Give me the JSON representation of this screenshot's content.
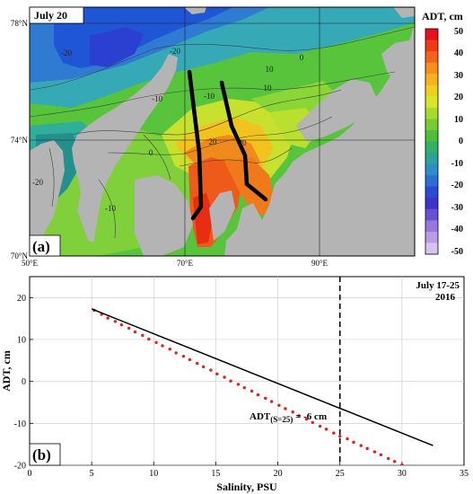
{
  "panel_a": {
    "label": "(a)",
    "date_label": "July 20",
    "colorbar_title": "ADT, cm",
    "colorbar_ticks": [
      "50",
      "40",
      "30",
      "20",
      "10",
      "0",
      "-10",
      "-20",
      "-30",
      "-40",
      "-50"
    ],
    "lat_labels": [
      "78°N",
      "74°N",
      "70°N"
    ],
    "lon_labels": [
      "50°E",
      "70°E",
      "90°E"
    ],
    "contour_labels": [
      "-20",
      "-20",
      "-10",
      "-20",
      "-10",
      "0",
      "0",
      "10",
      "-10",
      "10",
      "20",
      "20"
    ]
  },
  "chart_data": {
    "type": "scatter",
    "title": "",
    "panel_label": "(b)",
    "period_label": [
      "July 17-25",
      "2016"
    ],
    "xlabel": "Salinity, PSU",
    "ylabel": "ADT, cm",
    "xlim": [
      0,
      35
    ],
    "ylim": [
      -20,
      25
    ],
    "xticks": [
      0,
      5,
      10,
      15,
      20,
      25,
      30,
      35
    ],
    "yticks": [
      -20,
      -10,
      0,
      10,
      20
    ],
    "grid": true,
    "series": [
      {
        "x": [
          5.2,
          5.8,
          6.3,
          6.9,
          7.4,
          8.0,
          8.5,
          9.1,
          9.6,
          10.2,
          10.7,
          11.3,
          11.8,
          12.4,
          12.9,
          13.5,
          14.0,
          14.6,
          15.1,
          15.7,
          16.2,
          16.8,
          17.3,
          17.9,
          18.4,
          19.0,
          19.5,
          20.1,
          20.6,
          21.2,
          21.7,
          22.3,
          22.8,
          23.4,
          23.9,
          24.5,
          25.0,
          25.6,
          26.1,
          26.7,
          27.2,
          27.8,
          28.3,
          28.9,
          29.4,
          30.0,
          30.5,
          31.0,
          31.3,
          31.6,
          31.9,
          32.2
        ],
        "y": [
          17.0,
          16.0,
          15.1,
          14.3,
          13.5,
          12.7,
          11.8,
          11.0,
          10.1,
          9.3,
          8.5,
          7.7,
          6.8,
          6.0,
          5.2,
          4.3,
          3.5,
          2.7,
          1.8,
          1.0,
          0.1,
          -0.7,
          -1.5,
          -2.3,
          -3.2,
          -4.0,
          -4.8,
          -5.7,
          -6.5,
          -7.3,
          -8.2,
          -9.0,
          -9.8,
          -10.7,
          -11.4,
          -12.3,
          -13.1,
          -13.7,
          -14.5,
          -15.3,
          -16.0,
          -16.8,
          -17.5,
          -18.4,
          -19.1,
          -19.9,
          -20.4,
          -21.5,
          -21.9,
          -22.6,
          -22.9,
          -23.6
        ]
      }
    ],
    "fit_line": {
      "x": [
        5,
        32.5
      ],
      "y": [
        17.3,
        -15.3
      ]
    },
    "reference_x": 25,
    "annotation": {
      "prefix": "ADT",
      "subscript": "(S=25)",
      "suffix": " = -6 cm"
    }
  }
}
